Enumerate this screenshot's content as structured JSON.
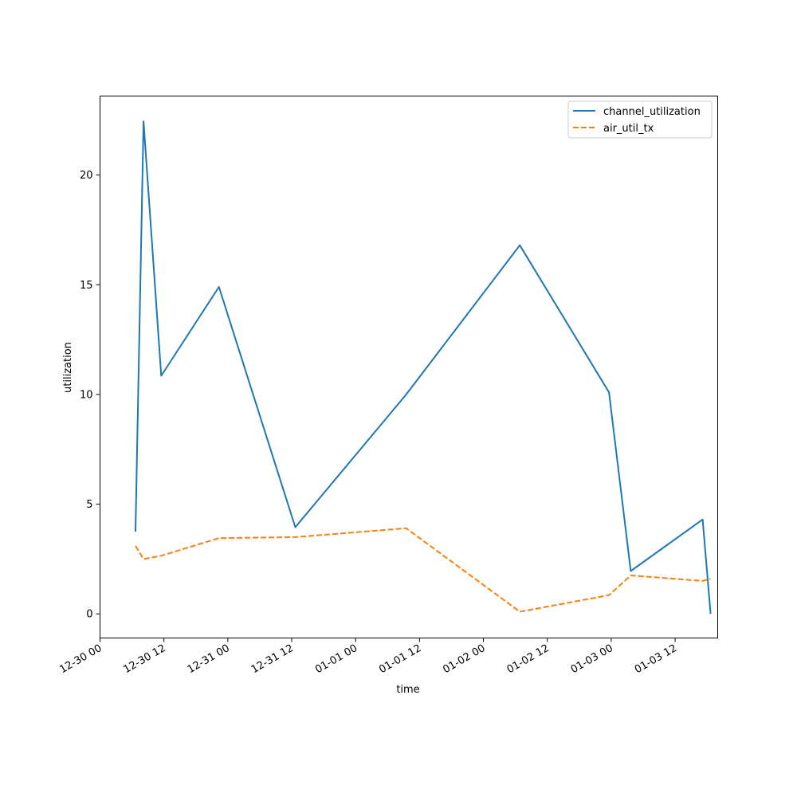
{
  "chart_data": {
    "type": "line",
    "title": "",
    "xlabel": "time",
    "ylabel": "utilization",
    "x_tick_labels": [
      "12-30 00",
      "12-30 12",
      "12-31 00",
      "12-31 12",
      "01-01 00",
      "01-01 12",
      "01-02 00",
      "01-02 12",
      "01-03 00",
      "01-03 12"
    ],
    "x_tick_times": [
      "2023-12-30 00:00",
      "2023-12-30 12:00",
      "2023-12-31 00:00",
      "2023-12-31 12:00",
      "2024-01-01 00:00",
      "2024-01-01 12:00",
      "2024-01-02 00:00",
      "2024-01-02 12:00",
      "2024-01-03 00:00",
      "2024-01-03 12:00"
    ],
    "y_ticks": [
      0,
      5,
      10,
      15,
      20
    ],
    "xlim": [
      "2023-12-30 00:00",
      "2024-01-03 20:00"
    ],
    "ylim": [
      -1.1,
      23.6
    ],
    "grid": false,
    "legend_position": "top-right",
    "series": [
      {
        "name": "channel_utilization",
        "color": "#1f77b4",
        "dash": "solid",
        "points": [
          {
            "x": "2023-12-30 06:40",
            "y": 3.75
          },
          {
            "x": "2023-12-30 08:10",
            "y": 22.45
          },
          {
            "x": "2023-12-30 11:30",
            "y": 10.85
          },
          {
            "x": "2023-12-30 22:20",
            "y": 14.9
          },
          {
            "x": "2023-12-31 12:40",
            "y": 3.95
          },
          {
            "x": "2024-01-01 09:30",
            "y": 10.0
          },
          {
            "x": "2024-01-02 06:50",
            "y": 16.8
          },
          {
            "x": "2024-01-02 23:35",
            "y": 10.1
          },
          {
            "x": "2024-01-03 03:40",
            "y": 1.95
          },
          {
            "x": "2024-01-03 17:10",
            "y": 4.3
          },
          {
            "x": "2024-01-03 18:40",
            "y": 0.0
          }
        ]
      },
      {
        "name": "air_util_tx",
        "color": "#ff7f0e",
        "dash": "dashed",
        "points": [
          {
            "x": "2023-12-30 06:40",
            "y": 3.1
          },
          {
            "x": "2023-12-30 08:10",
            "y": 2.5
          },
          {
            "x": "2023-12-30 11:30",
            "y": 2.65
          },
          {
            "x": "2023-12-30 22:20",
            "y": 3.45
          },
          {
            "x": "2023-12-31 12:40",
            "y": 3.5
          },
          {
            "x": "2024-01-01 09:30",
            "y": 3.9
          },
          {
            "x": "2024-01-02 06:50",
            "y": 0.1
          },
          {
            "x": "2024-01-02 23:35",
            "y": 0.85
          },
          {
            "x": "2024-01-03 03:40",
            "y": 1.75
          },
          {
            "x": "2024-01-03 17:10",
            "y": 1.5
          },
          {
            "x": "2024-01-03 18:40",
            "y": 1.6
          }
        ]
      }
    ]
  }
}
